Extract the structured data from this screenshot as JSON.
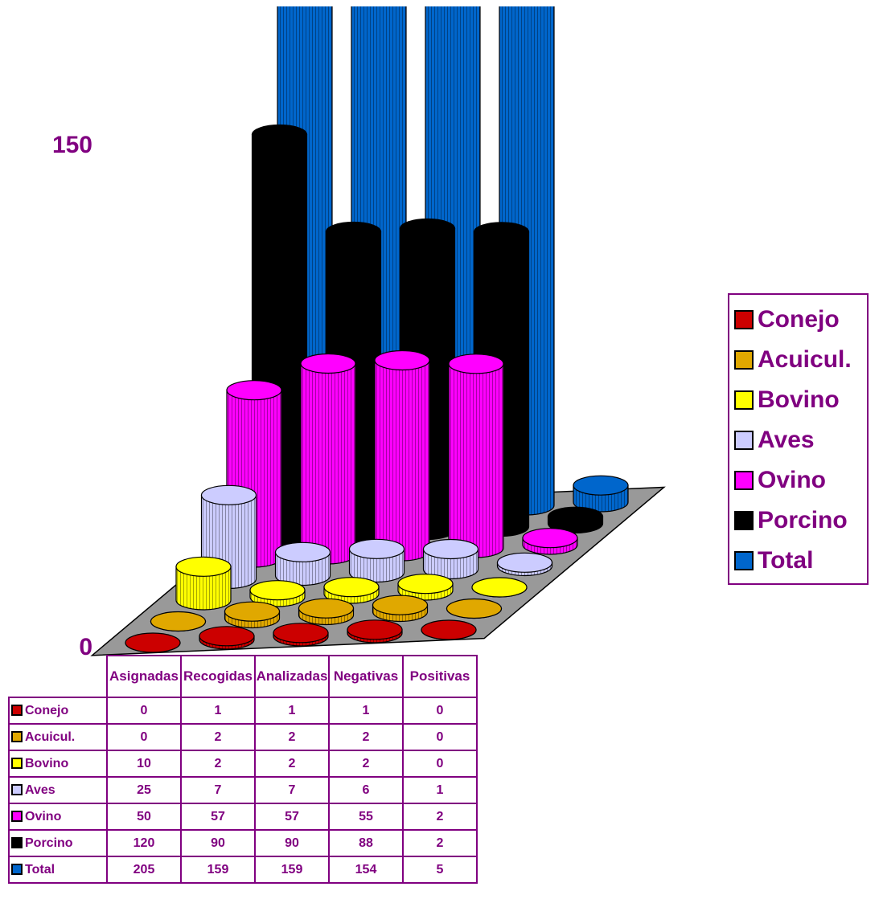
{
  "chart_data": {
    "type": "cylinder3d",
    "categories": [
      "Asignadas",
      "Recogidas",
      "Analizadas",
      "Negativas",
      "Positivas"
    ],
    "series": [
      {
        "name": "Conejo",
        "color": "#cc0000",
        "values": [
          0,
          1,
          1,
          1,
          0
        ]
      },
      {
        "name": "Acuicul.",
        "color": "#e0a800",
        "values": [
          0,
          2,
          2,
          2,
          0
        ]
      },
      {
        "name": "Bovino",
        "color": "#ffff00",
        "values": [
          10,
          2,
          2,
          2,
          0
        ]
      },
      {
        "name": "Aves",
        "color": "#ccccff",
        "values": [
          25,
          7,
          7,
          6,
          1
        ]
      },
      {
        "name": "Ovino",
        "color": "#ff00ff",
        "values": [
          50,
          57,
          57,
          55,
          2
        ]
      },
      {
        "name": "Porcino",
        "color": "#000000",
        "values": [
          120,
          90,
          90,
          88,
          2
        ]
      },
      {
        "name": "Total",
        "color": "#0066cc",
        "values": [
          205,
          159,
          159,
          154,
          5
        ]
      }
    ],
    "ylim": [
      0,
      150
    ],
    "yticks": [
      0,
      150
    ],
    "legend": "right",
    "data_table": true
  }
}
